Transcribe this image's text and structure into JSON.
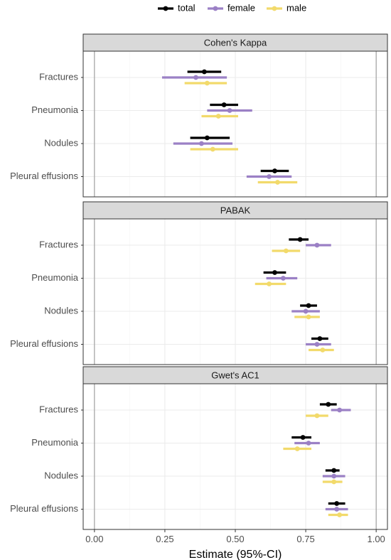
{
  "chart_data": {
    "type": "forest",
    "xlabel": "Estimate (95%-CI)",
    "xlim": [
      -0.04,
      1.04
    ],
    "x_ticks": [
      0.0,
      0.25,
      0.5,
      0.75,
      1.0
    ],
    "x_tick_labels": [
      "0.00",
      "0.25",
      "0.50",
      "0.75",
      "1.00"
    ],
    "reference_lines": [
      0,
      1
    ],
    "grid": true,
    "legend_position": "top",
    "categories": [
      "Fractures",
      "Pneumonia",
      "Nodules",
      "Pleural effusions"
    ],
    "series": [
      {
        "name": "total",
        "color": "#000000"
      },
      {
        "name": "female",
        "color": "#9b80c5"
      },
      {
        "name": "male",
        "color": "#f2da6b"
      }
    ],
    "panels": [
      {
        "title": "Cohen's Kappa",
        "estimates": {
          "Fractures": {
            "total": [
              0.39,
              0.33,
              0.45
            ],
            "female": [
              0.36,
              0.24,
              0.47
            ],
            "male": [
              0.4,
              0.32,
              0.47
            ]
          },
          "Pneumonia": {
            "total": [
              0.46,
              0.41,
              0.51
            ],
            "female": [
              0.48,
              0.4,
              0.56
            ],
            "male": [
              0.44,
              0.38,
              0.51
            ]
          },
          "Nodules": {
            "total": [
              0.4,
              0.34,
              0.48
            ],
            "female": [
              0.38,
              0.28,
              0.49
            ],
            "male": [
              0.42,
              0.34,
              0.51
            ]
          },
          "Pleural effusions": {
            "total": [
              0.64,
              0.59,
              0.69
            ],
            "female": [
              0.62,
              0.54,
              0.7
            ],
            "male": [
              0.65,
              0.58,
              0.72
            ]
          }
        }
      },
      {
        "title": "PABAK",
        "estimates": {
          "Fractures": {
            "total": [
              0.73,
              0.69,
              0.76
            ],
            "female": [
              0.79,
              0.75,
              0.84
            ],
            "male": [
              0.68,
              0.63,
              0.73
            ]
          },
          "Pneumonia": {
            "total": [
              0.64,
              0.6,
              0.68
            ],
            "female": [
              0.67,
              0.61,
              0.72
            ],
            "male": [
              0.62,
              0.57,
              0.68
            ]
          },
          "Nodules": {
            "total": [
              0.76,
              0.73,
              0.79
            ],
            "female": [
              0.75,
              0.7,
              0.8
            ],
            "male": [
              0.76,
              0.71,
              0.8
            ]
          },
          "Pleural effusions": {
            "total": [
              0.8,
              0.77,
              0.83
            ],
            "female": [
              0.79,
              0.75,
              0.84
            ],
            "male": [
              0.81,
              0.76,
              0.85
            ]
          }
        }
      },
      {
        "title": "Gwet's AC1",
        "estimates": {
          "Fractures": {
            "total": [
              0.83,
              0.8,
              0.86
            ],
            "female": [
              0.87,
              0.84,
              0.91
            ],
            "male": [
              0.79,
              0.75,
              0.83
            ]
          },
          "Pneumonia": {
            "total": [
              0.74,
              0.7,
              0.77
            ],
            "female": [
              0.76,
              0.71,
              0.8
            ],
            "male": [
              0.72,
              0.67,
              0.77
            ]
          },
          "Nodules": {
            "total": [
              0.85,
              0.82,
              0.87
            ],
            "female": [
              0.85,
              0.81,
              0.89
            ],
            "male": [
              0.85,
              0.81,
              0.88
            ]
          },
          "Pleural effusions": {
            "total": [
              0.86,
              0.83,
              0.89
            ],
            "female": [
              0.86,
              0.82,
              0.9
            ],
            "male": [
              0.87,
              0.83,
              0.9
            ]
          }
        }
      }
    ]
  }
}
